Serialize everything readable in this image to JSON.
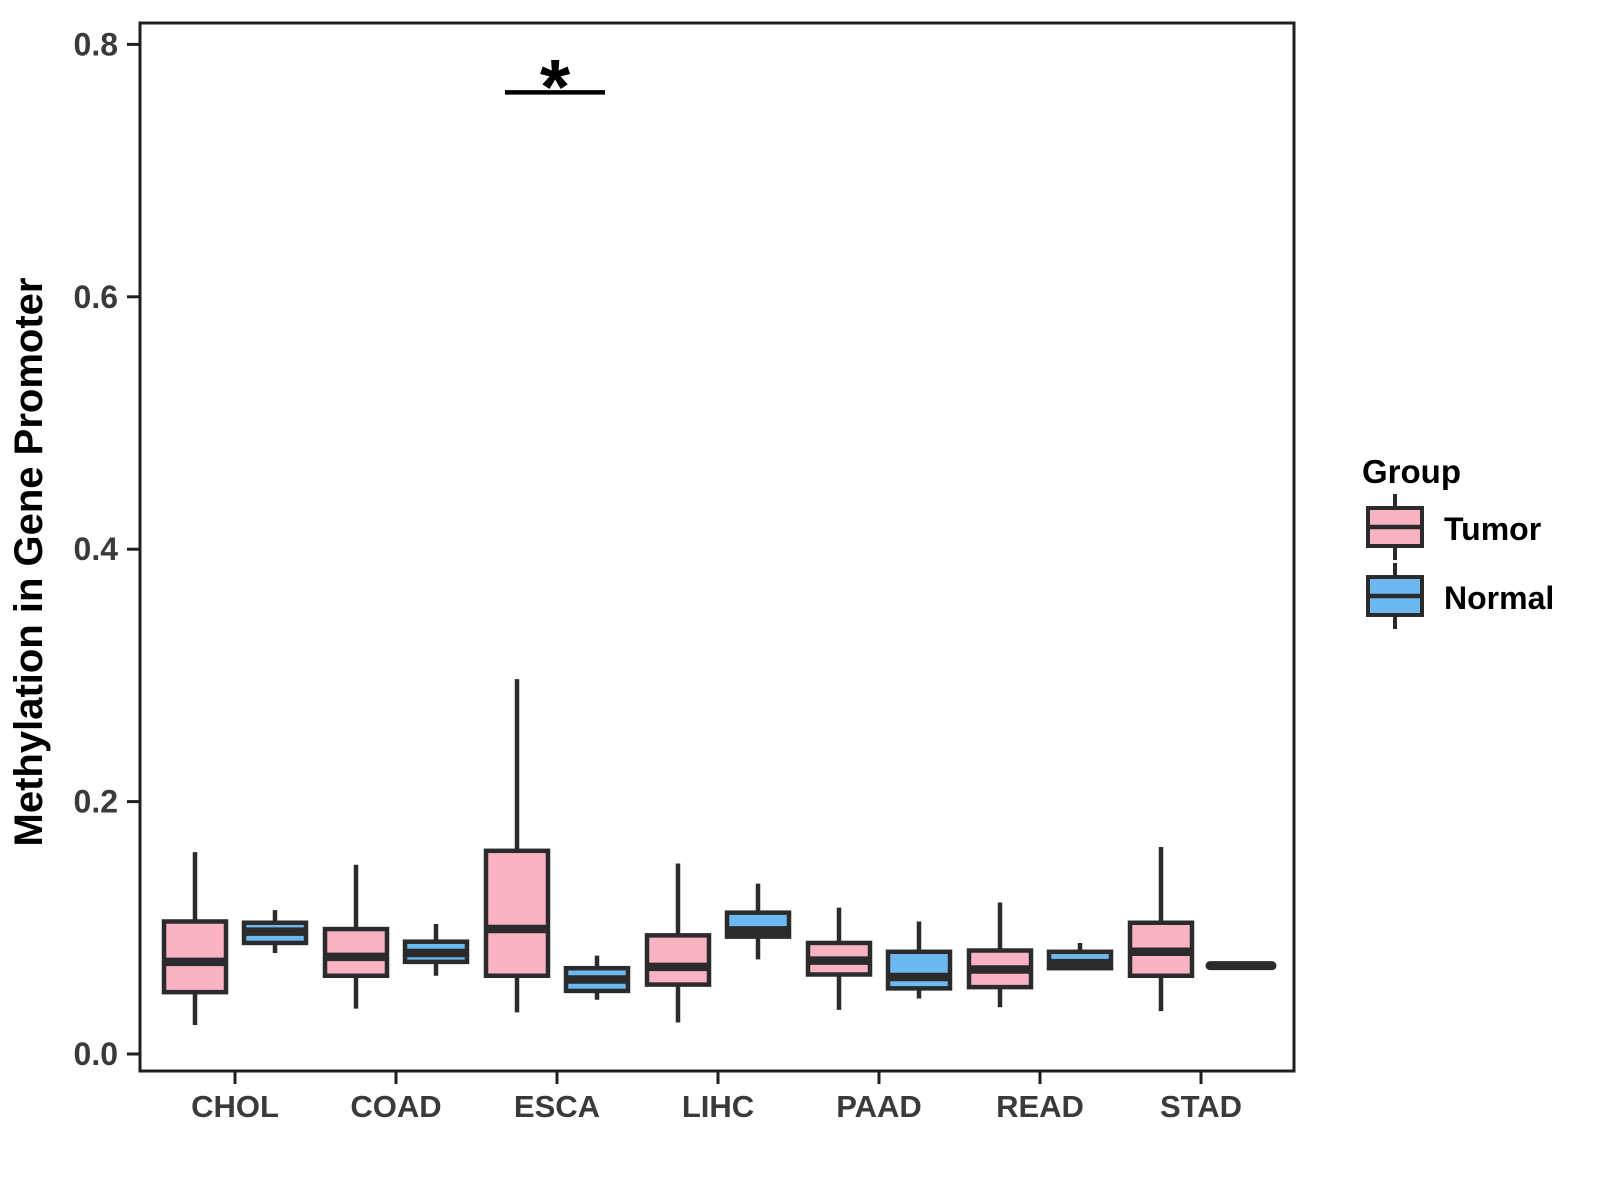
{
  "figure": {
    "y_axis": {
      "title": "Methylation in Gene Promoter",
      "ticks": [
        0.0,
        0.2,
        0.4,
        0.6,
        0.8
      ],
      "tick_labels": [
        "0.0",
        "0.2",
        "0.4",
        "0.6",
        "0.8"
      ]
    },
    "x_axis": {
      "categories": [
        "CHOL",
        "COAD",
        "ESCA",
        "LIHC",
        "PAAD",
        "READ",
        "STAD"
      ]
    },
    "legend": {
      "title": "Group",
      "entries": [
        {
          "label": "Tumor",
          "color": "#F9B3C3"
        },
        {
          "label": "Normal",
          "color": "#6CB8F0"
        }
      ]
    }
  },
  "chart_data": {
    "type": "boxplot",
    "title": "",
    "xlabel": "",
    "ylabel": "Methylation in Gene Promoter",
    "ylim": [
      0,
      0.82
    ],
    "grid": false,
    "legend_position": "right",
    "categories": [
      "CHOL",
      "COAD",
      "ESCA",
      "LIHC",
      "PAAD",
      "READ",
      "STAD"
    ],
    "series": [
      {
        "name": "Tumor",
        "color": "#F9B3C3",
        "boxes": [
          {
            "category": "CHOL",
            "min": 0.023,
            "q1": 0.049,
            "median": 0.073,
            "q3": 0.105,
            "max": 0.16
          },
          {
            "category": "COAD",
            "min": 0.036,
            "q1": 0.062,
            "median": 0.077,
            "q3": 0.099,
            "max": 0.15
          },
          {
            "category": "ESCA",
            "min": 0.033,
            "q1": 0.062,
            "median": 0.099,
            "q3": 0.161,
            "max": 0.297
          },
          {
            "category": "LIHC",
            "min": 0.025,
            "q1": 0.055,
            "median": 0.069,
            "q3": 0.094,
            "max": 0.151
          },
          {
            "category": "PAAD",
            "min": 0.035,
            "q1": 0.063,
            "median": 0.074,
            "q3": 0.088,
            "max": 0.116
          },
          {
            "category": "READ",
            "min": 0.037,
            "q1": 0.053,
            "median": 0.067,
            "q3": 0.082,
            "max": 0.12
          },
          {
            "category": "STAD",
            "min": 0.034,
            "q1": 0.062,
            "median": 0.081,
            "q3": 0.104,
            "max": 0.164
          }
        ]
      },
      {
        "name": "Normal",
        "color": "#6CB8F0",
        "boxes": [
          {
            "category": "CHOL",
            "min": 0.08,
            "q1": 0.088,
            "median": 0.097,
            "q3": 0.104,
            "max": 0.114
          },
          {
            "category": "COAD",
            "min": 0.062,
            "q1": 0.073,
            "median": 0.08,
            "q3": 0.089,
            "max": 0.103
          },
          {
            "category": "ESCA",
            "min": 0.043,
            "q1": 0.05,
            "median": 0.059,
            "q3": 0.068,
            "max": 0.078
          },
          {
            "category": "LIHC",
            "min": 0.075,
            "q1": 0.093,
            "median": 0.098,
            "q3": 0.112,
            "max": 0.135
          },
          {
            "category": "PAAD",
            "min": 0.044,
            "q1": 0.052,
            "median": 0.061,
            "q3": 0.081,
            "max": 0.105
          },
          {
            "category": "READ",
            "min": 0.068,
            "q1": 0.068,
            "median": 0.072,
            "q3": 0.081,
            "max": 0.088
          },
          {
            "category": "STAD",
            "min": 0.07,
            "q1": 0.07,
            "median": 0.07,
            "q3": 0.07,
            "max": 0.07
          }
        ]
      }
    ],
    "significance": [
      {
        "label": "*",
        "category": "ESCA",
        "between": [
          "Tumor",
          "Normal"
        ],
        "bar_y": 0.762
      }
    ]
  }
}
